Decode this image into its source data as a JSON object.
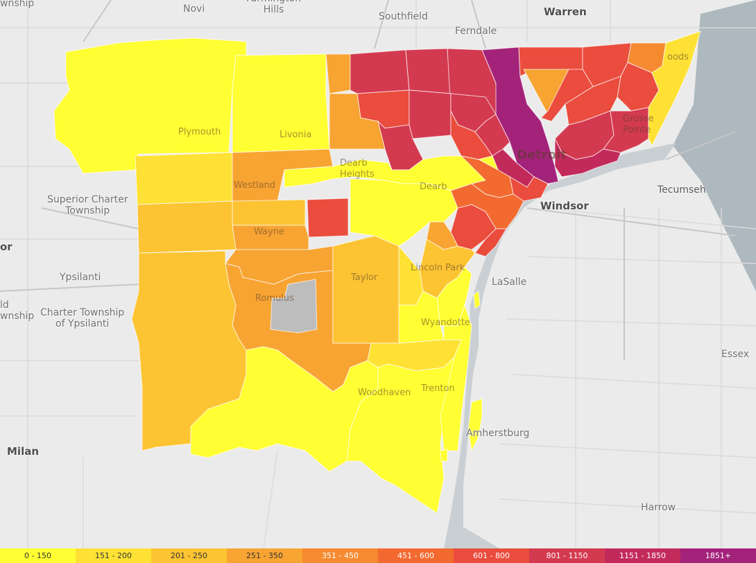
{
  "map": {
    "places": {
      "northville_township": "wnship",
      "novi": "Novi",
      "farmington_hills": "Farmington\nHills",
      "southfield": "Southfield",
      "warren": "Warren",
      "ferndale": "Ferndale",
      "plymouth": "Plymouth",
      "livonia": "Livonia",
      "superior_charter_township": "Superior Charter\nTownship",
      "westland": "Westland",
      "dearborn_heights": "Dearb\nHeights",
      "dearborn": "Dearb",
      "detroit": "Detroit",
      "grosse_pointe": "Grosse\nPointe",
      "grosse_pointe_woods": "oods",
      "windsor": "Windsor",
      "tecumseh": "Tecumseh",
      "ann_arbor_partial": "or",
      "ypsilanti": "Ypsilanti",
      "charter_township_ypsilanti": "Charter Township\nof Ypsilanti",
      "ypsilanti_township_partial": "ld\nwnship",
      "wayne": "Wayne",
      "romulus": "Romulus",
      "taylor": "Taylor",
      "lincoln_park": "Lincoln Park",
      "lasalle": "LaSalle",
      "wyandotte": "Wyandotte",
      "woodhaven": "Woodhaven",
      "trenton": "Trenton",
      "amherstburg": "Amherstburg",
      "essex": "Essex",
      "milan": "Milan",
      "harrow": "Harrow"
    }
  },
  "legend": {
    "items": [
      {
        "label": "0 - 150",
        "color": "#ffff33"
      },
      {
        "label": "151 - 200",
        "color": "#fee134"
      },
      {
        "label": "201 - 250",
        "color": "#fcc433"
      },
      {
        "label": "251 - 350",
        "color": "#f8a433"
      },
      {
        "label": "351 - 450",
        "color": "#f58a30"
      },
      {
        "label": "451 - 600",
        "color": "#f26a30"
      },
      {
        "label": "601 - 800",
        "color": "#ea4c3d"
      },
      {
        "label": "801 - 1150",
        "color": "#d33a50"
      },
      {
        "label": "1151 - 1850",
        "color": "#c32a5c"
      },
      {
        "label": "1851+",
        "color": "#a4237a"
      }
    ],
    "no_data_color": "#bdbdbd"
  }
}
